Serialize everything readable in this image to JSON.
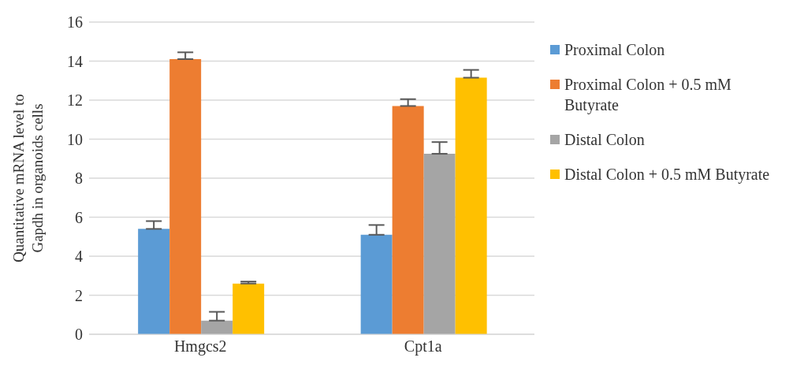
{
  "chart_data": {
    "type": "bar",
    "ylabel": "Quantitative mRNA level to\nGapdh in organoids cells",
    "categories": [
      "Hmgcs2",
      "Cpt1a"
    ],
    "series": [
      {
        "name": "Proximal Colon",
        "color": "#5b9bd5",
        "values": [
          5.4,
          5.1
        ],
        "errors": [
          [
            5.4,
            5.8
          ],
          [
            5.1,
            5.6
          ]
        ]
      },
      {
        "name": "Proximal Colon + 0.5 mM Butyrate",
        "color": "#ed7d31",
        "values": [
          14.1,
          11.7
        ],
        "errors": [
          [
            14.1,
            14.45
          ],
          [
            11.7,
            12.05
          ]
        ]
      },
      {
        "name": "Distal Colon",
        "color": "#a5a5a5",
        "values": [
          0.7,
          9.25
        ],
        "errors": [
          [
            0.7,
            1.15
          ],
          [
            9.25,
            9.85
          ]
        ]
      },
      {
        "name": "Distal Colon + 0.5 mM Butyrate",
        "color": "#ffc000",
        "values": [
          2.6,
          13.15
        ],
        "errors": [
          [
            2.6,
            2.7
          ],
          [
            13.15,
            13.55
          ]
        ]
      }
    ],
    "ylim": [
      0,
      16
    ],
    "yticks": [
      0,
      2,
      4,
      6,
      8,
      10,
      12,
      14,
      16
    ],
    "grid": "y",
    "legend": "right"
  }
}
